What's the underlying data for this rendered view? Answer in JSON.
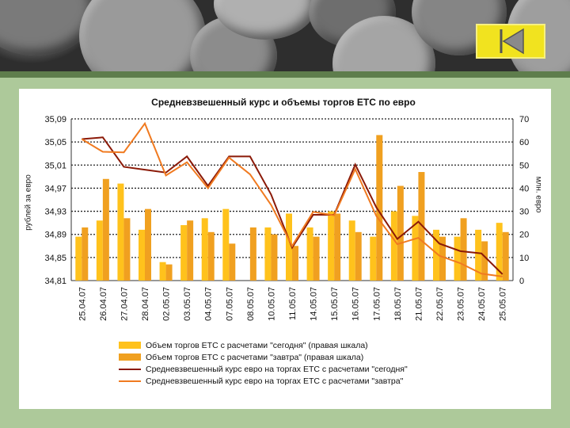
{
  "colors": {
    "bar_today": "#ffc21c",
    "bar_tomorrow": "#f0a020",
    "line_today": "#8b1a08",
    "line_tomorrow": "#f07a20",
    "nav_button": "#f1e31f",
    "slide_bg": "#adc99a"
  },
  "nav": {
    "back_icon": "back-arrow-icon"
  },
  "chart_data": {
    "type": "bar",
    "title": "Средневзвешенный курс и объемы торгов ЕТС по евро",
    "ylabel_left": "рублей за евро",
    "ylabel_right": "млн. евро",
    "ylim_left": [
      34.81,
      35.09
    ],
    "ylim_right": [
      0,
      70
    ],
    "yticks_left": [
      "35,09",
      "35,05",
      "35,01",
      "34,97",
      "34,93",
      "34,89",
      "34,85",
      "34,81"
    ],
    "yticks_right": [
      "70",
      "60",
      "50",
      "40",
      "30",
      "20",
      "10",
      "0"
    ],
    "grid": "dashed horizontal",
    "categories": [
      "25.04.07",
      "26.04.07",
      "27.04.07",
      "28.04.07",
      "02.05.07",
      "03.05.07",
      "04.05.07",
      "07.05.07",
      "08.05.07",
      "10.05.07",
      "11.05.07",
      "14.05.07",
      "15.05.07",
      "16.05.07",
      "17.05.07",
      "18.05.07",
      "21.05.07",
      "22.05.07",
      "23.05.07",
      "24.05.07",
      "25.05.07"
    ],
    "series": [
      {
        "name": "Объем торгов ЕТС с расчетами \"сегодня\" (правая шкала)",
        "type": "bar",
        "axis": "right",
        "values": [
          19,
          26,
          42,
          22,
          8,
          24,
          27,
          31,
          0,
          23,
          29,
          23,
          30,
          26,
          19,
          30,
          28,
          22,
          19,
          22,
          25
        ]
      },
      {
        "name": "Объем торгов ЕТС с расчетами \"завтра\" (правая шкала)",
        "type": "bar",
        "axis": "right",
        "values": [
          23,
          44,
          27,
          31,
          7,
          26,
          21,
          16,
          23,
          20,
          15,
          19,
          29,
          21,
          63,
          41,
          47,
          19,
          27,
          17,
          21
        ]
      },
      {
        "name": "Средневзвешенный курс евро на торгах ЕТС с расчетами \"сегодня\"",
        "type": "line",
        "axis": "left",
        "values": [
          35.055,
          35.058,
          35.007,
          35.002,
          34.997,
          35.025,
          34.974,
          35.025,
          35.025,
          34.959,
          34.867,
          34.924,
          34.924,
          35.011,
          34.937,
          34.882,
          34.912,
          34.874,
          34.861,
          34.857,
          34.821
        ]
      },
      {
        "name": "Средневзвешенный курс евро на торгах ЕТС с расчетами \"завтра\"",
        "type": "line",
        "axis": "left",
        "values": [
          35.055,
          35.033,
          35.032,
          35.082,
          34.992,
          35.015,
          34.97,
          35.023,
          34.994,
          34.941,
          34.87,
          34.929,
          34.923,
          35.003,
          34.922,
          34.873,
          34.884,
          34.853,
          34.84,
          34.822,
          34.817
        ]
      }
    ]
  }
}
